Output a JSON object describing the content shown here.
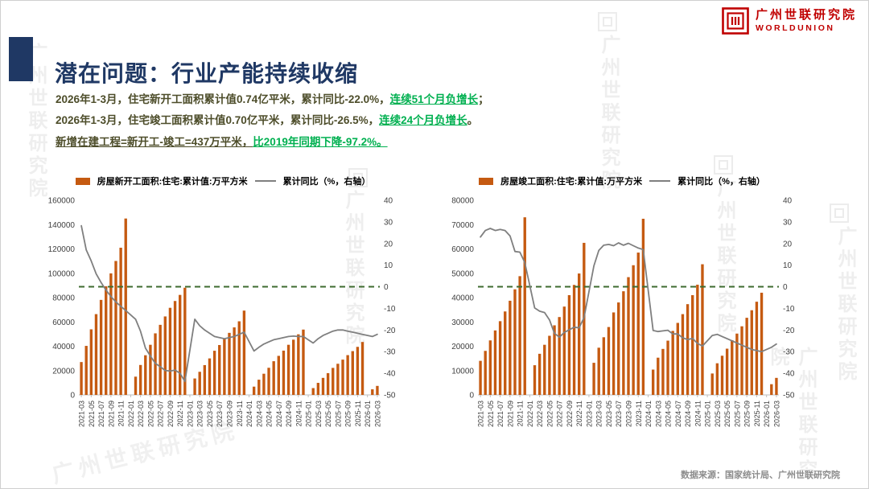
{
  "slide": {
    "title": "潜在问题：行业产能持续收缩",
    "bullets": {
      "line1_main": "2026年1-3月，住宅新开工面积累计值0.74亿平米，累计同比-22.0%，",
      "line1_highlight": "连续51个月负增长",
      "line1_end": "；",
      "line2_main": "2026年1-3月，住宅竣工面积累计值0.70亿平米，累计同比-26.5%，",
      "line2_highlight": "连续24个月负增长",
      "line2_end": "。",
      "line3_main": "新增在建工程=新开工-竣工=437万平米，",
      "line3_highlight": "比2019年同期下降-97.2%。"
    },
    "source": "数据来源：国家统计局、广州世联研究院"
  },
  "logo": {
    "cn": "广州世联研究院",
    "en": "WORLDUNION"
  },
  "watermark_text": "广州世联研究院",
  "colors": {
    "title": "#1F3864",
    "bullet_text": "#4D4D2A",
    "highlight_green": "#00B050",
    "bar_orange": "#C55A11",
    "line_gray": "#7F7F7F",
    "zero_dash_green": "#3E6B2F",
    "logo_red": "#C00000"
  },
  "chart_data": [
    {
      "id": "new-starts",
      "type": "bar+line",
      "legend_bar": "房屋新开工面积:住宅:累计值:万平方米",
      "legend_line": "累计同比（%，右轴）",
      "y_left": {
        "min": 0,
        "max": 160000,
        "step": 20000
      },
      "y_right": {
        "min": -50,
        "max": 40,
        "step": 10
      },
      "colors": {
        "bar": "#C55A11",
        "line": "#7F7F7F",
        "zero": "#3E6B2F"
      },
      "categories": [
        "2021-03",
        "2021-04",
        "2021-05",
        "2021-06",
        "2021-07",
        "2021-08",
        "2021-09",
        "2021-10",
        "2021-11",
        "2021-12",
        "2022-01",
        "2022-02",
        "2022-03",
        "2022-04",
        "2022-05",
        "2022-06",
        "2022-07",
        "2022-08",
        "2022-09",
        "2022-10",
        "2022-11",
        "2022-12",
        "2023-01",
        "2023-02",
        "2023-03",
        "2023-04",
        "2023-05",
        "2023-06",
        "2023-07",
        "2023-08",
        "2023-09",
        "2023-10",
        "2023-11",
        "2023-12",
        "2024-01",
        "2024-02",
        "2024-03",
        "2024-04",
        "2024-05",
        "2024-06",
        "2024-07",
        "2024-08",
        "2024-09",
        "2024-10",
        "2024-11",
        "2024-12",
        "2025-01",
        "2025-02",
        "2025-03",
        "2025-04",
        "2025-05",
        "2025-06",
        "2025-07",
        "2025-08",
        "2025-09",
        "2025-10",
        "2025-11",
        "2025-12",
        "2026-01",
        "2026-02",
        "2026-03"
      ],
      "bars": [
        27000,
        40300,
        53900,
        66400,
        78100,
        89300,
        99900,
        110100,
        121000,
        145000,
        null,
        15000,
        24600,
        32600,
        41200,
        50600,
        57600,
        64500,
        71600,
        77200,
        82200,
        88100,
        null,
        13500,
        19000,
        24500,
        30000,
        36300,
        41000,
        46000,
        51000,
        55500,
        60500,
        69300,
        null,
        6800,
        12500,
        17400,
        22300,
        27700,
        32100,
        36400,
        41200,
        45400,
        49800,
        53700,
        null,
        5600,
        9900,
        14000,
        17900,
        22200,
        25600,
        29000,
        32700,
        36000,
        39500,
        43500,
        null,
        4600,
        7400
      ],
      "line": [
        28.2,
        17,
        12,
        6,
        2,
        -1.5,
        -4.5,
        -7,
        -9,
        -11,
        null,
        -15,
        -20.5,
        -28.4,
        -32,
        -35.4,
        -37,
        -38.7,
        -39,
        -38.5,
        -40,
        -43.8,
        null,
        -15,
        -18,
        -20,
        -21.5,
        -23,
        -23.5,
        -24,
        -23.5,
        -23,
        -22,
        -21,
        null,
        -29.7,
        -28,
        -26.5,
        -25.5,
        -24.5,
        -24,
        -23.5,
        -23,
        -22.8,
        -23,
        -23,
        null,
        -26,
        -24,
        -22.5,
        -21.5,
        -20.5,
        -20,
        -20,
        -20.5,
        -21,
        -21.5,
        -22,
        null,
        -23,
        -22
      ]
    },
    {
      "id": "completions",
      "type": "bar+line",
      "legend_bar": "房屋竣工面积:住宅:累计值:万平方米",
      "legend_line": "累计同比（%，右轴）",
      "y_left": {
        "min": 0,
        "max": 80000,
        "step": 10000
      },
      "y_right": {
        "min": -50,
        "max": 40,
        "step": 10
      },
      "colors": {
        "bar": "#C55A11",
        "line": "#7F7F7F",
        "zero": "#3E6B2F"
      },
      "categories": [
        "2021-03",
        "2021-04",
        "2021-05",
        "2021-06",
        "2021-07",
        "2021-08",
        "2021-09",
        "2021-10",
        "2021-11",
        "2021-12",
        "2022-01",
        "2022-02",
        "2022-03",
        "2022-04",
        "2022-05",
        "2022-06",
        "2022-07",
        "2022-08",
        "2022-09",
        "2022-10",
        "2022-11",
        "2022-12",
        "2023-01",
        "2023-02",
        "2023-03",
        "2023-04",
        "2023-05",
        "2023-06",
        "2023-07",
        "2023-08",
        "2023-09",
        "2023-10",
        "2023-11",
        "2023-12",
        "2024-01",
        "2024-02",
        "2024-03",
        "2024-04",
        "2024-05",
        "2024-06",
        "2024-07",
        "2024-08",
        "2024-09",
        "2024-10",
        "2024-11",
        "2024-12",
        "2025-01",
        "2025-02",
        "2025-03",
        "2025-04",
        "2025-05",
        "2025-06",
        "2025-07",
        "2025-08",
        "2025-09",
        "2025-10",
        "2025-11",
        "2025-12",
        "2026-01",
        "2026-02",
        "2026-03"
      ],
      "bars": [
        14000,
        18100,
        22400,
        26500,
        30300,
        34300,
        38700,
        43400,
        48800,
        73000,
        null,
        12200,
        16900,
        20600,
        24300,
        28600,
        32000,
        36300,
        41000,
        45200,
        49900,
        62500,
        null,
        13200,
        19400,
        23700,
        27900,
        33900,
        38000,
        42600,
        48400,
        53300,
        58500,
        72400,
        null,
        10400,
        15300,
        18900,
        22300,
        26300,
        29600,
        33200,
        37300,
        41000,
        45300,
        53700,
        null,
        8800,
        13000,
        16100,
        19000,
        22500,
        25200,
        28200,
        31700,
        34800,
        38300,
        42000,
        null,
        4400,
        7000
      ],
      "line": [
        23,
        26,
        27,
        26,
        26.5,
        26,
        23.5,
        16.3,
        16,
        11.2,
        null,
        -9.8,
        -11.3,
        -11.9,
        -15.3,
        -21.5,
        -23.3,
        -21.1,
        -19.9,
        -18.7,
        -19,
        -14.3,
        null,
        9.7,
        16.8,
        19.2,
        19.6,
        19,
        20.3,
        19.2,
        20.1,
        19,
        17.9,
        17.2,
        null,
        -20.2,
        -20.7,
        -20.4,
        -20.1,
        -21.8,
        -21.8,
        -23.6,
        -24.4,
        -23.9,
        -26.2,
        -27.4,
        null,
        -22.5,
        -22,
        -23,
        -24,
        -25,
        -26,
        -27,
        -28,
        -29,
        -29.5,
        -30,
        null,
        -28,
        -26.5
      ]
    }
  ]
}
